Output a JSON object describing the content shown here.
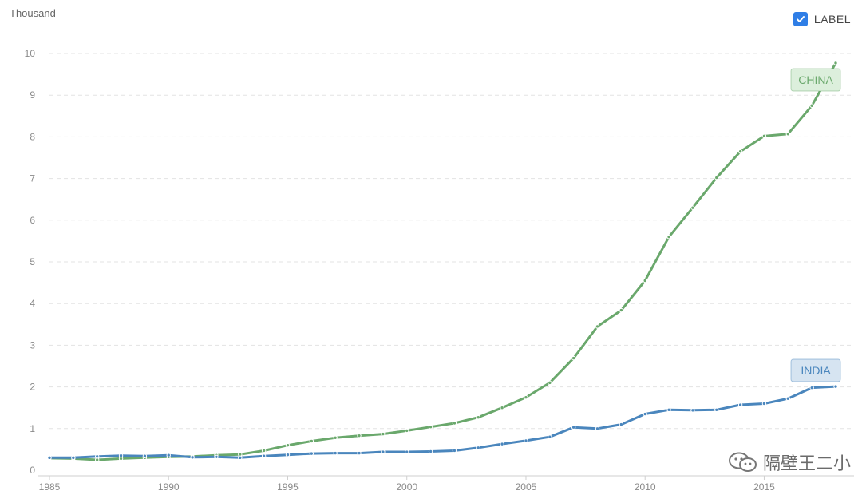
{
  "legend": {
    "label": "LABEL",
    "checked": true,
    "check_color": "#2f7ee6"
  },
  "watermark": {
    "text": "隔壁王二小",
    "icon": "wechat-icon"
  },
  "chart_data": {
    "type": "line",
    "ylabel": "Thousand",
    "ylim": [
      0,
      10
    ],
    "yticks": [
      0,
      1,
      2,
      3,
      4,
      5,
      6,
      7,
      8,
      9,
      10
    ],
    "xlim": [
      1985,
      2018
    ],
    "xticks": [
      1985,
      1990,
      1995,
      2000,
      2005,
      2010,
      2015
    ],
    "grid": true,
    "x": [
      1985,
      1986,
      1987,
      1988,
      1989,
      1990,
      1991,
      1992,
      1993,
      1994,
      1995,
      1996,
      1997,
      1998,
      1999,
      2000,
      2001,
      2002,
      2003,
      2004,
      2005,
      2006,
      2007,
      2008,
      2009,
      2010,
      2011,
      2012,
      2013,
      2014,
      2015,
      2016,
      2017,
      2018
    ],
    "series": [
      {
        "name": "CHINA",
        "color": "#6aa86c",
        "label_bg": "#dcefdc",
        "values": [
          0.29,
          0.28,
          0.25,
          0.28,
          0.3,
          0.32,
          0.33,
          0.36,
          0.38,
          0.47,
          0.6,
          0.7,
          0.78,
          0.83,
          0.87,
          0.95,
          1.04,
          1.13,
          1.27,
          1.5,
          1.75,
          2.1,
          2.69,
          3.45,
          3.84,
          4.55,
          5.6,
          6.3,
          7.02,
          7.65,
          8.02,
          8.07,
          8.75,
          9.77
        ]
      },
      {
        "name": "INDIA",
        "color": "#4a86bd",
        "label_bg": "#d6e4f1",
        "values": [
          0.3,
          0.3,
          0.33,
          0.35,
          0.34,
          0.36,
          0.31,
          0.32,
          0.3,
          0.34,
          0.37,
          0.4,
          0.41,
          0.41,
          0.44,
          0.44,
          0.45,
          0.47,
          0.54,
          0.63,
          0.71,
          0.8,
          1.03,
          1.0,
          1.1,
          1.35,
          1.45,
          1.44,
          1.45,
          1.57,
          1.6,
          1.72,
          1.98,
          2.01
        ]
      }
    ]
  }
}
